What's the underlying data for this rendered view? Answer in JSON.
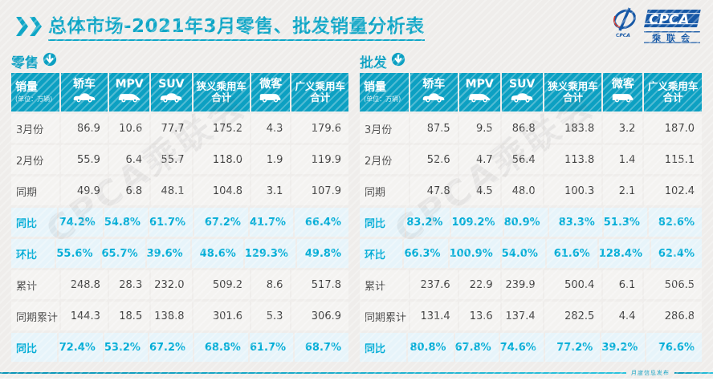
{
  "page": {
    "title": "总体市场-2021年3月零售、批发销量分析表",
    "footer_label": "月度信息发布",
    "watermark": "CPCA乘联会"
  },
  "logo": {
    "cpca_text": "CPCA",
    "name_cn": "乘联会",
    "small_text": "CPCA"
  },
  "colors": {
    "teal": "#0CA0C2",
    "title_teal": "#0FA6C6",
    "highlight_text": "#00ACD6",
    "highlight_bg": "#E7F4FA",
    "row_bg": "#F4F3F1",
    "logo_blue": "#1557A5"
  },
  "tables": [
    {
      "id": "retail",
      "section_label": "零售",
      "section_icon": "down-arrow-circle-icon",
      "unit_label": "销量",
      "unit_sub": "(单位：万辆)",
      "columns": [
        {
          "label": "轿车",
          "icon": "sedan-car-icon"
        },
        {
          "label": "MPV",
          "icon": "mpv-car-icon"
        },
        {
          "label": "SUV",
          "icon": "suv-car-icon"
        },
        {
          "label": "狭义乘用车",
          "label2": "合计"
        },
        {
          "label": "微客",
          "icon": "van-car-icon"
        },
        {
          "label": "广义乘用车",
          "label2": "合计"
        }
      ],
      "rows": [
        {
          "label": "3月份",
          "highlight": false,
          "values": [
            "86.9",
            "10.6",
            "77.7",
            "175.2",
            "4.3",
            "179.6"
          ]
        },
        {
          "label": "2月份",
          "highlight": false,
          "values": [
            "55.9",
            "6.4",
            "55.7",
            "118.0",
            "1.9",
            "119.9"
          ]
        },
        {
          "label": "同期",
          "highlight": false,
          "values": [
            "49.9",
            "6.8",
            "48.1",
            "104.8",
            "3.1",
            "107.9"
          ]
        },
        {
          "label": "同比",
          "highlight": true,
          "values": [
            "74.2%",
            "54.8%",
            "61.7%",
            "67.2%",
            "41.7%",
            "66.4%"
          ]
        },
        {
          "label": "环比",
          "highlight": true,
          "values": [
            "55.6%",
            "65.7%",
            "39.6%",
            "48.6%",
            "129.3%",
            "49.8%"
          ]
        },
        {
          "label": "累计",
          "highlight": false,
          "values": [
            "248.8",
            "28.3",
            "232.0",
            "509.2",
            "8.6",
            "517.8"
          ]
        },
        {
          "label": "同期累计",
          "highlight": false,
          "values": [
            "144.3",
            "18.5",
            "138.8",
            "301.6",
            "5.3",
            "306.9"
          ]
        },
        {
          "label": "同比",
          "highlight": true,
          "values": [
            "72.4%",
            "53.2%",
            "67.2%",
            "68.8%",
            "61.7%",
            "68.7%"
          ]
        }
      ]
    },
    {
      "id": "wholesale",
      "section_label": "批发",
      "section_icon": "down-arrow-circle-icon",
      "unit_label": "销量",
      "unit_sub": "(单位：万辆)",
      "columns": [
        {
          "label": "轿车",
          "icon": "sedan-car-icon"
        },
        {
          "label": "MPV",
          "icon": "mpv-car-icon"
        },
        {
          "label": "SUV",
          "icon": "suv-car-icon"
        },
        {
          "label": "狭义乘用车",
          "label2": "合计"
        },
        {
          "label": "微客",
          "icon": "van-car-icon"
        },
        {
          "label": "广义乘用车",
          "label2": "合计"
        }
      ],
      "rows": [
        {
          "label": "3月份",
          "highlight": false,
          "values": [
            "87.5",
            "9.5",
            "86.8",
            "183.8",
            "3.2",
            "187.0"
          ]
        },
        {
          "label": "2月份",
          "highlight": false,
          "values": [
            "52.6",
            "4.7",
            "56.4",
            "113.8",
            "1.4",
            "115.1"
          ]
        },
        {
          "label": "同期",
          "highlight": false,
          "values": [
            "47.8",
            "4.5",
            "48.0",
            "100.3",
            "2.1",
            "102.4"
          ]
        },
        {
          "label": "同比",
          "highlight": true,
          "values": [
            "83.2%",
            "109.2%",
            "80.9%",
            "83.3%",
            "51.3%",
            "82.6%"
          ]
        },
        {
          "label": "环比",
          "highlight": true,
          "values": [
            "66.3%",
            "100.9%",
            "54.0%",
            "61.6%",
            "128.4%",
            "62.4%"
          ]
        },
        {
          "label": "累计",
          "highlight": false,
          "values": [
            "237.6",
            "22.9",
            "239.9",
            "500.4",
            "6.1",
            "506.5"
          ]
        },
        {
          "label": "同期累计",
          "highlight": false,
          "values": [
            "131.4",
            "13.6",
            "137.4",
            "282.5",
            "4.4",
            "286.8"
          ]
        },
        {
          "label": "同比",
          "highlight": true,
          "values": [
            "80.8%",
            "67.8%",
            "74.6%",
            "77.2%",
            "39.2%",
            "76.6%"
          ]
        }
      ]
    }
  ]
}
